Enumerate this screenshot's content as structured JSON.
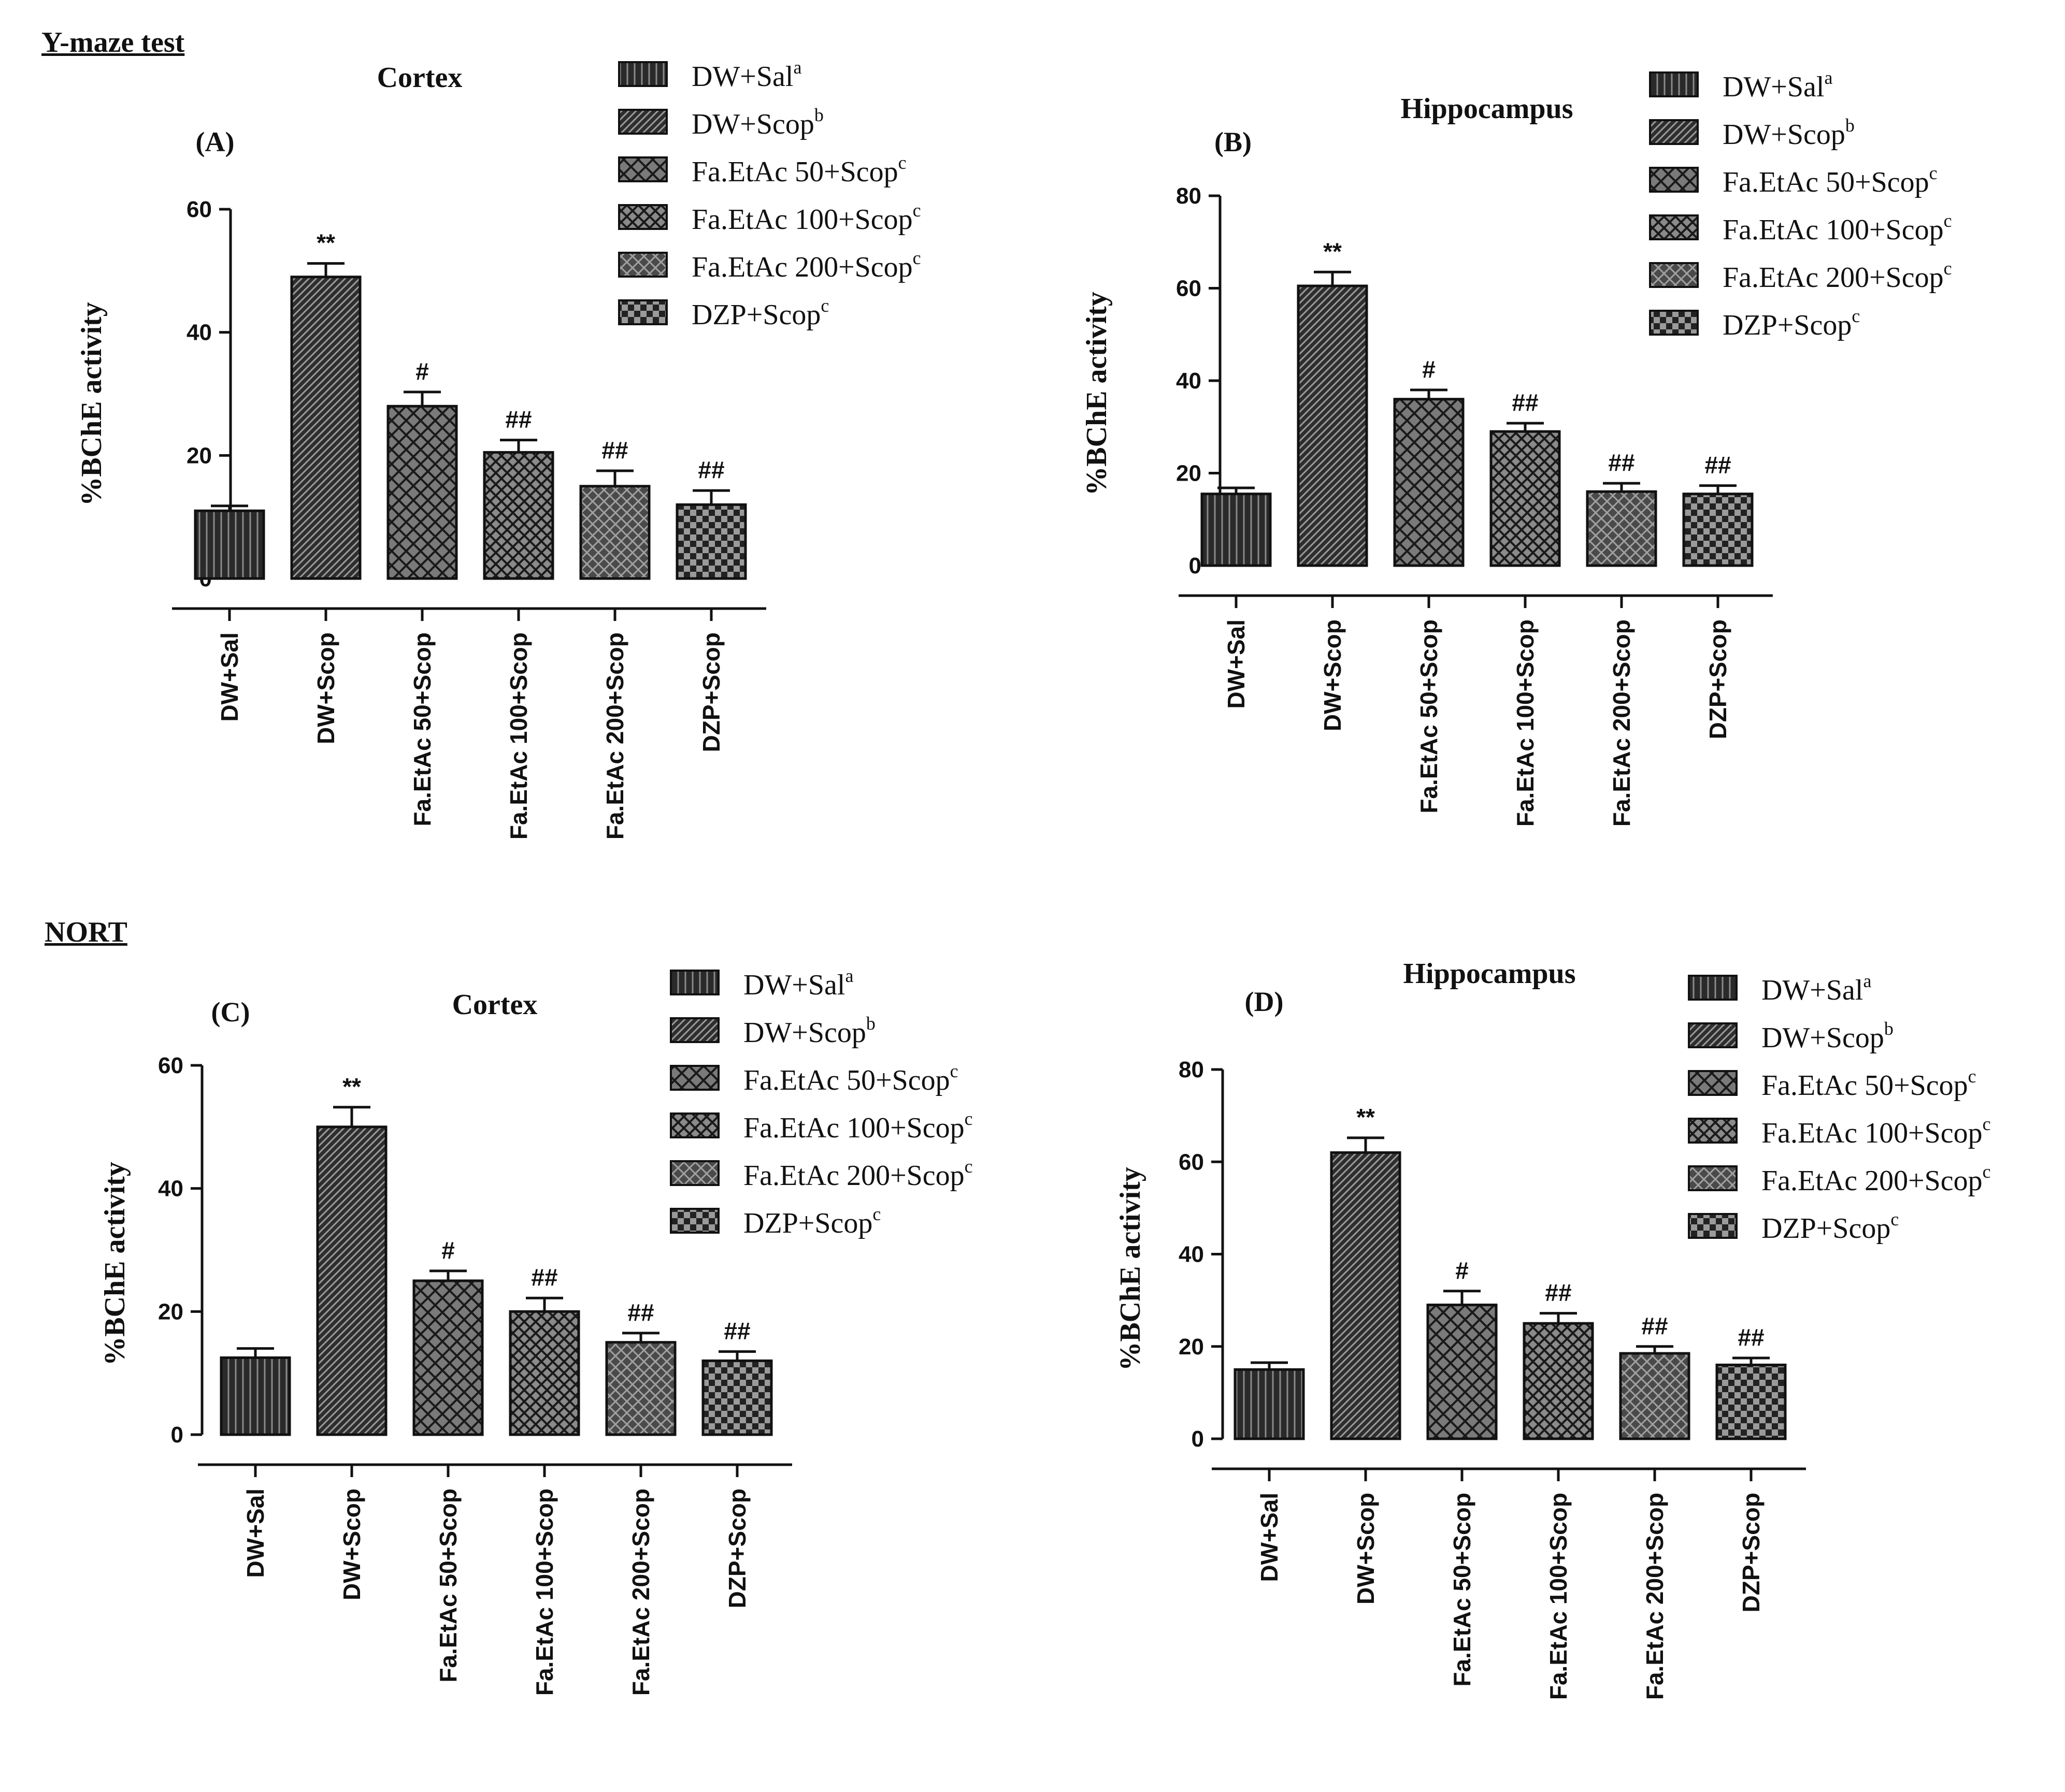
{
  "sections": {
    "top": "Y-maze test",
    "bottom": "NORT"
  },
  "colors": {
    "ink": "#111111",
    "bar_fill_dark": "#2a2a2a",
    "bar_fill_mid": "#6f6f6f",
    "background": "#ffffff"
  },
  "legend": [
    {
      "label": "DW+Sal",
      "sup": "a",
      "pattern": "vertical-lines"
    },
    {
      "label": "DW+Scop",
      "sup": "b",
      "pattern": "diagonal-lines"
    },
    {
      "label": "Fa.EtAc 50+Scop",
      "sup": "c",
      "pattern": "open-crosshatch"
    },
    {
      "label": "Fa.EtAc 100+Scop",
      "sup": "c",
      "pattern": "dense-crosshatch"
    },
    {
      "label": "Fa.EtAc 200+Scop",
      "sup": "c",
      "pattern": "gray-crosshatch"
    },
    {
      "label": "DZP+Scop",
      "sup": "c",
      "pattern": "checker"
    }
  ],
  "chart_data": [
    {
      "panel": "(A)",
      "type": "bar",
      "title": "Cortex",
      "ylabel": "%BChE activity",
      "ylim": [
        0,
        60
      ],
      "yticks": [
        0,
        20,
        40,
        60
      ],
      "categories": [
        "DW+Sal",
        "DW+Scop",
        "Fa.EtAc 50+Scop",
        "Fa.EtAc 100+Scop",
        "Fa.EtAc 200+Scop",
        "DZP+Scop"
      ],
      "values": [
        11,
        49,
        28,
        20.5,
        15,
        12
      ],
      "errors": [
        0.8,
        2.2,
        2.3,
        2,
        2.5,
        2.3
      ],
      "annotations": [
        "",
        "**",
        "#",
        "##",
        "##",
        "##"
      ]
    },
    {
      "panel": "(B)",
      "type": "bar",
      "title": "Hippocampus",
      "ylabel": "%BChE activity",
      "ylim": [
        0,
        80
      ],
      "yticks": [
        0,
        20,
        40,
        60,
        80
      ],
      "categories": [
        "DW+Sal",
        "DW+Scop",
        "Fa.EtAc 50+Scop",
        "Fa.EtAc 100+Scop",
        "Fa.EtAc 200+Scop",
        "DZP+Scop"
      ],
      "values": [
        15.5,
        60.5,
        36,
        29,
        16,
        15.5
      ],
      "errors": [
        1.3,
        3,
        2,
        1.8,
        1.8,
        1.8
      ],
      "annotations": [
        "",
        "**",
        "#",
        "##",
        "##",
        "##"
      ]
    },
    {
      "panel": "(C)",
      "type": "bar",
      "title": "Cortex",
      "ylabel": "%BChE activity",
      "ylim": [
        0,
        60
      ],
      "yticks": [
        0,
        20,
        40,
        60
      ],
      "categories": [
        "DW+Sal",
        "DW+Scop",
        "Fa.EtAc 50+Scop",
        "Fa.EtAc 100+Scop",
        "Fa.EtAc 200+Scop",
        "DZP+Scop"
      ],
      "values": [
        12.5,
        50,
        25,
        20,
        15,
        12
      ],
      "errors": [
        1.5,
        3.2,
        1.6,
        2.2,
        1.5,
        1.5
      ],
      "annotations": [
        "",
        "**",
        "#",
        "##",
        "##",
        "##"
      ]
    },
    {
      "panel": "(D)",
      "type": "bar",
      "title": "Hippocampus",
      "ylabel": "%BChE activity",
      "ylim": [
        0,
        80
      ],
      "yticks": [
        0,
        20,
        40,
        60,
        80
      ],
      "categories": [
        "DW+Sal",
        "DW+Scop",
        "Fa.EtAc 50+Scop",
        "Fa.EtAc 100+Scop",
        "Fa.EtAc 200+Scop",
        "DZP+Scop"
      ],
      "values": [
        15,
        62,
        29,
        25,
        18.5,
        16
      ],
      "errors": [
        1.5,
        3.2,
        3,
        2.2,
        1.5,
        1.5
      ],
      "annotations": [
        "",
        "**",
        "#",
        "##",
        "##",
        "##"
      ]
    }
  ]
}
